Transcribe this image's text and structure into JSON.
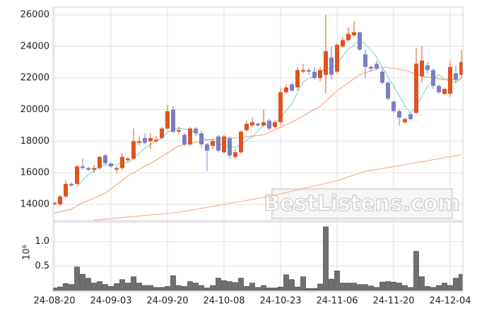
{
  "chart_data": {
    "type": "candlestick",
    "categories": [
      "24-08-20",
      null,
      null,
      null,
      null,
      null,
      null,
      null,
      null,
      null,
      "24-09-03",
      null,
      null,
      null,
      null,
      null,
      null,
      null,
      null,
      null,
      "24-09-20",
      null,
      null,
      null,
      null,
      null,
      null,
      null,
      null,
      null,
      "24-10-08",
      null,
      null,
      null,
      null,
      null,
      null,
      null,
      null,
      null,
      "24-10-23",
      null,
      null,
      null,
      null,
      null,
      null,
      null,
      null,
      null,
      "24-11-06",
      null,
      null,
      null,
      null,
      null,
      null,
      null,
      null,
      null,
      "24-11-20",
      null,
      null,
      null,
      null,
      null,
      null,
      null,
      null,
      null,
      "24-12-04",
      null,
      null
    ],
    "open": [
      14000,
      14000,
      14500,
      15300,
      15300,
      16400,
      16300,
      16200,
      16300,
      17100,
      16600,
      16200,
      16300,
      16800,
      16900,
      17900,
      18200,
      18000,
      18000,
      18200,
      18800,
      20000,
      18600,
      18400,
      17800,
      18800,
      18500,
      17800,
      17700,
      18300,
      17300,
      18200,
      17000,
      17300,
      18700,
      19000,
      19100,
      19000,
      19300,
      18900,
      19200,
      21100,
      21600,
      21400,
      22400,
      22500,
      22400,
      22000,
      22200,
      23300,
      22400,
      24000,
      24400,
      24700,
      24900,
      23500,
      22700,
      22900,
      22400,
      21700,
      20500,
      19900,
      19200,
      19700,
      19800,
      22100,
      22800,
      22500,
      21500,
      21000,
      21000,
      22300,
      22200
    ],
    "high": [
      14150,
      14600,
      15500,
      15400,
      16500,
      16900,
      16400,
      16500,
      17100,
      17200,
      16600,
      16400,
      17200,
      17000,
      18800,
      18300,
      18500,
      18500,
      18300,
      18900,
      20300,
      20200,
      18900,
      18500,
      18900,
      18900,
      18700,
      17900,
      18100,
      18400,
      18400,
      18300,
      17500,
      18700,
      19300,
      19500,
      19200,
      20000,
      19400,
      19300,
      21400,
      21600,
      21700,
      22700,
      22900,
      22600,
      22700,
      22700,
      26000,
      24000,
      24200,
      24600,
      25200,
      25600,
      24900,
      23800,
      22800,
      23100,
      22600,
      21800,
      20600,
      20000,
      19500,
      19800,
      23900,
      24000,
      23000,
      22600,
      21600,
      21400,
      23100,
      22800,
      23800
    ],
    "low": [
      13950,
      13900,
      14400,
      15100,
      15200,
      16200,
      16100,
      16000,
      16200,
      16500,
      16300,
      16000,
      16200,
      16700,
      16800,
      17700,
      17800,
      17500,
      17900,
      18100,
      18700,
      18500,
      18400,
      17700,
      17700,
      18300,
      17600,
      16100,
      17500,
      17300,
      17200,
      16900,
      16900,
      17200,
      18600,
      18900,
      18900,
      18900,
      18700,
      18800,
      19000,
      21000,
      21100,
      21200,
      22300,
      22200,
      21900,
      21800,
      21000,
      21900,
      22300,
      23900,
      24300,
      24600,
      23700,
      22000,
      22400,
      22500,
      21600,
      20600,
      19800,
      19000,
      19100,
      19300,
      19700,
      21700,
      22300,
      21300,
      21000,
      20900,
      20800,
      21700,
      22000
    ],
    "close": [
      14100,
      14500,
      15300,
      15200,
      16400,
      16300,
      16200,
      16300,
      17000,
      16600,
      16400,
      16300,
      17000,
      16900,
      18000,
      18000,
      17900,
      18200,
      18100,
      18800,
      19900,
      18600,
      18700,
      17800,
      18800,
      18500,
      17800,
      17400,
      18000,
      17400,
      18300,
      17100,
      17300,
      18600,
      19100,
      19200,
      19000,
      19200,
      18800,
      19200,
      21100,
      21400,
      21200,
      22500,
      22500,
      22400,
      22000,
      22500,
      23700,
      22200,
      24100,
      24400,
      24800,
      24900,
      23800,
      22700,
      22600,
      22600,
      21700,
      20700,
      19900,
      19500,
      19400,
      19400,
      22900,
      23100,
      22500,
      21500,
      21100,
      21300,
      22700,
      21900,
      23000
    ],
    "up_color": "#e0531f",
    "down_color": "#7b7fc0",
    "lines": [
      {
        "color": "#86d9c4",
        "values": [
          null,
          null,
          null,
          null,
          15100,
          15540,
          15880,
          16080,
          16440,
          16480,
          16500,
          16520,
          16660,
          16640,
          16920,
          17240,
          17560,
          17800,
          18040,
          18200,
          18580,
          18720,
          18820,
          18760,
          18760,
          18480,
          18320,
          18060,
          18100,
          17820,
          17780,
          17640,
          17620,
          17740,
          18080,
          18260,
          18640,
          19020,
          19060,
          19080,
          19460,
          19940,
          20340,
          21080,
          21740,
          22000,
          22120,
          22380,
          22620,
          22560,
          22900,
          23380,
          23840,
          24080,
          24400,
          24120,
          23760,
          23320,
          22680,
          22060,
          21500,
          20880,
          20240,
          19780,
          20220,
          20860,
          21460,
          21880,
          22220,
          21900,
          21820,
          21700,
          22000
        ]
      },
      {
        "color": "#efa98a",
        "values": [
          13450,
          13530,
          13620,
          13700,
          13900,
          14100,
          14250,
          14400,
          14550,
          14700,
          14980,
          15250,
          15530,
          15800,
          16000,
          16200,
          16400,
          16600,
          16800,
          17030,
          17250,
          17480,
          17700,
          17780,
          17860,
          17940,
          18020,
          18100,
          18120,
          18140,
          18160,
          18180,
          18200,
          18240,
          18280,
          18320,
          18360,
          18400,
          18560,
          18720,
          18880,
          19040,
          19200,
          19400,
          19600,
          19800,
          20000,
          20200,
          20530,
          20870,
          21200,
          21450,
          21700,
          21950,
          22200,
          22330,
          22450,
          22580,
          22700,
          22650,
          22600,
          22550,
          22500,
          22370,
          22230,
          22100,
          22050,
          22000,
          21950,
          21900,
          21900,
          21900,
          21900
        ]
      },
      {
        "color": "#efb496",
        "values": [
          null,
          null,
          null,
          null,
          null,
          null,
          null,
          13000,
          13030,
          13070,
          13100,
          13130,
          13170,
          13200,
          13230,
          13270,
          13300,
          13330,
          13370,
          13400,
          13430,
          13470,
          13500,
          13560,
          13630,
          13690,
          13750,
          13810,
          13880,
          13940,
          14000,
          14060,
          14130,
          14190,
          14250,
          14310,
          14380,
          14440,
          14500,
          14580,
          14670,
          14750,
          14830,
          14920,
          15000,
          15080,
          15170,
          15250,
          15330,
          15420,
          15500,
          15620,
          15740,
          15860,
          15980,
          16100,
          16160,
          16210,
          16270,
          16330,
          16390,
          16440,
          16500,
          16570,
          16630,
          16700,
          16760,
          16830,
          16890,
          16960,
          17020,
          17090,
          17150
        ]
      }
    ],
    "ylim": [
      12970,
      26490
    ],
    "yticks": [
      14000,
      16000,
      18000,
      20000,
      22000,
      24000,
      26000
    ],
    "volume": {
      "color": "#707070",
      "axis_label": "10⁶",
      "values": [
        0.05,
        0.07,
        0.14,
        0.12,
        0.48,
        0.33,
        0.25,
        0.15,
        0.18,
        0.12,
        0.08,
        0.14,
        0.22,
        0.15,
        0.28,
        0.15,
        0.1,
        0.1,
        0.06,
        0.06,
        0.08,
        0.3,
        0.1,
        0.08,
        0.18,
        0.15,
        0.1,
        0.05,
        0.1,
        0.25,
        0.2,
        0.18,
        0.16,
        0.25,
        0.08,
        0.15,
        0.06,
        0.1,
        0.05,
        0.05,
        0.07,
        0.32,
        0.22,
        0.07,
        0.28,
        0.04,
        0.04,
        0.13,
        1.3,
        0.23,
        0.4,
        0.15,
        0.15,
        0.15,
        0.12,
        0.12,
        0.09,
        0.06,
        0.17,
        0.18,
        0.17,
        0.15,
        0.1,
        0.06,
        0.8,
        0.28,
        0.08,
        0.06,
        0.1,
        0.15,
        0.1,
        0.25,
        0.33
      ]
    },
    "y2lim": [
      -0.03,
      1.4
    ],
    "y2ticks": [
      0.5,
      {
        "value": 1,
        "label": "1.0"
      }
    ],
    "grid": true,
    "watermark": "BestListens.com"
  }
}
